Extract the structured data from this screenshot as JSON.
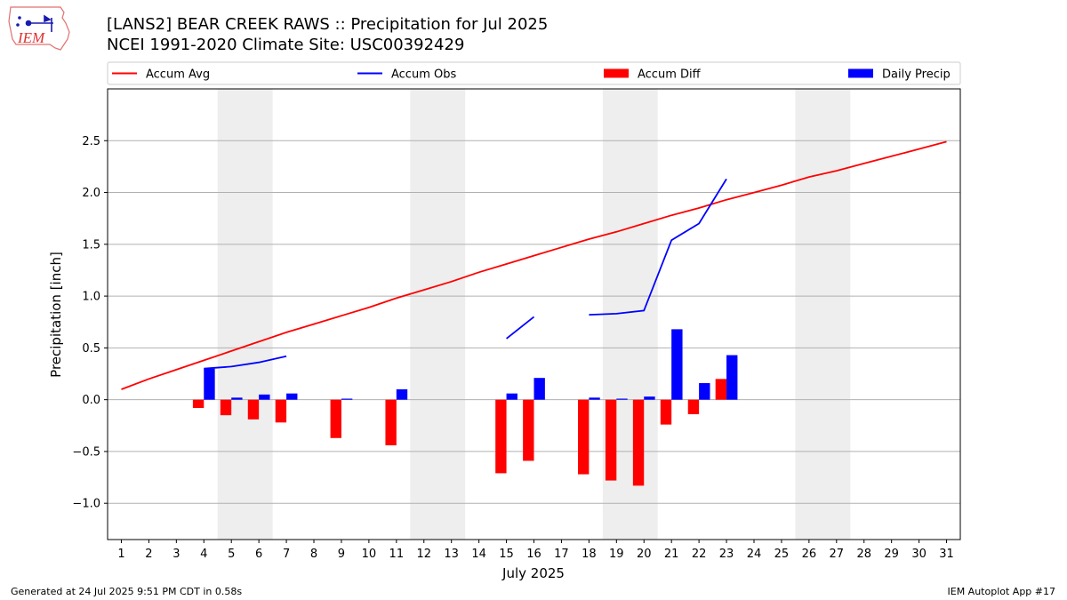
{
  "title": "[LANS2] BEAR CREEK RAWS :: Precipitation for Jul 2025",
  "subtitle": "NCEI 1991-2020 Climate Site: USC00392429",
  "footer_left": "Generated at 24 Jul 2025 9:51 PM CDT in 0.58s",
  "footer_right": "IEM Autoplot App #17",
  "logo_text": "IEM",
  "colors": {
    "accum_avg": "#ff0000",
    "accum_obs": "#0000ff",
    "accum_diff": "#ff0000",
    "daily_precip": "#0000ff",
    "weekend_shade": "#eeeeee",
    "grid": "#b0b0b0"
  },
  "chart_data": {
    "type": "bar",
    "xlabel": "July 2025",
    "ylabel": "Precipitation [inch]",
    "xlim": [
      0.5,
      31.5
    ],
    "ylim": [
      -1.35,
      3.0
    ],
    "yticks": [
      -1.0,
      -0.5,
      0.0,
      0.5,
      1.0,
      1.5,
      2.0,
      2.5
    ],
    "ytick_labels": [
      "−1.0",
      "−0.5",
      "0.0",
      "0.5",
      "1.0",
      "1.5",
      "2.0",
      "2.5"
    ],
    "x": [
      1,
      2,
      3,
      4,
      5,
      6,
      7,
      8,
      9,
      10,
      11,
      12,
      13,
      14,
      15,
      16,
      17,
      18,
      19,
      20,
      21,
      22,
      23,
      24,
      25,
      26,
      27,
      28,
      29,
      30,
      31
    ],
    "grid": "horizontal",
    "legend": {
      "position": "top",
      "entries": [
        {
          "label": "Accum Avg",
          "kind": "line",
          "color": "#ff0000"
        },
        {
          "label": "Accum Obs",
          "kind": "line",
          "color": "#0000ff"
        },
        {
          "label": "Accum Diff",
          "kind": "bar",
          "color": "#ff0000"
        },
        {
          "label": "Daily Precip",
          "kind": "bar",
          "color": "#0000ff"
        }
      ]
    },
    "weekend_shading": [
      [
        4.5,
        6.5
      ],
      [
        11.5,
        13.5
      ],
      [
        18.5,
        20.5
      ],
      [
        25.5,
        27.5
      ]
    ],
    "series": [
      {
        "name": "Accum Avg",
        "type": "line",
        "values": [
          0.1,
          0.2,
          0.29,
          0.38,
          0.47,
          0.56,
          0.65,
          0.73,
          0.81,
          0.89,
          0.98,
          1.06,
          1.14,
          1.23,
          1.31,
          1.39,
          1.47,
          1.55,
          1.62,
          1.7,
          1.78,
          1.85,
          1.93,
          2.0,
          2.07,
          2.15,
          2.21,
          2.28,
          2.35,
          2.42,
          2.49
        ]
      },
      {
        "name": "Accum Obs",
        "type": "line",
        "values": [
          null,
          null,
          null,
          0.3,
          0.32,
          0.36,
          0.42,
          null,
          null,
          null,
          null,
          null,
          null,
          null,
          0.59,
          0.8,
          null,
          0.82,
          0.83,
          0.86,
          1.54,
          1.7,
          2.13,
          null,
          null,
          null,
          null,
          null,
          null,
          null,
          null
        ]
      },
      {
        "name": "Accum Diff",
        "type": "bar",
        "values": [
          null,
          null,
          null,
          -0.08,
          -0.15,
          -0.19,
          -0.22,
          null,
          -0.37,
          null,
          -0.44,
          null,
          null,
          null,
          -0.71,
          -0.59,
          null,
          -0.72,
          -0.78,
          -0.83,
          -0.24,
          -0.14,
          0.2,
          null,
          null,
          null,
          null,
          null,
          null,
          null,
          null
        ]
      },
      {
        "name": "Daily Precip",
        "type": "bar",
        "values": [
          null,
          null,
          null,
          0.3,
          0.02,
          0.05,
          0.06,
          null,
          0.01,
          null,
          0.1,
          null,
          null,
          null,
          0.06,
          0.21,
          null,
          0.02,
          0.01,
          0.03,
          0.68,
          0.16,
          0.43,
          null,
          null,
          null,
          null,
          null,
          null,
          null,
          null
        ]
      }
    ]
  }
}
